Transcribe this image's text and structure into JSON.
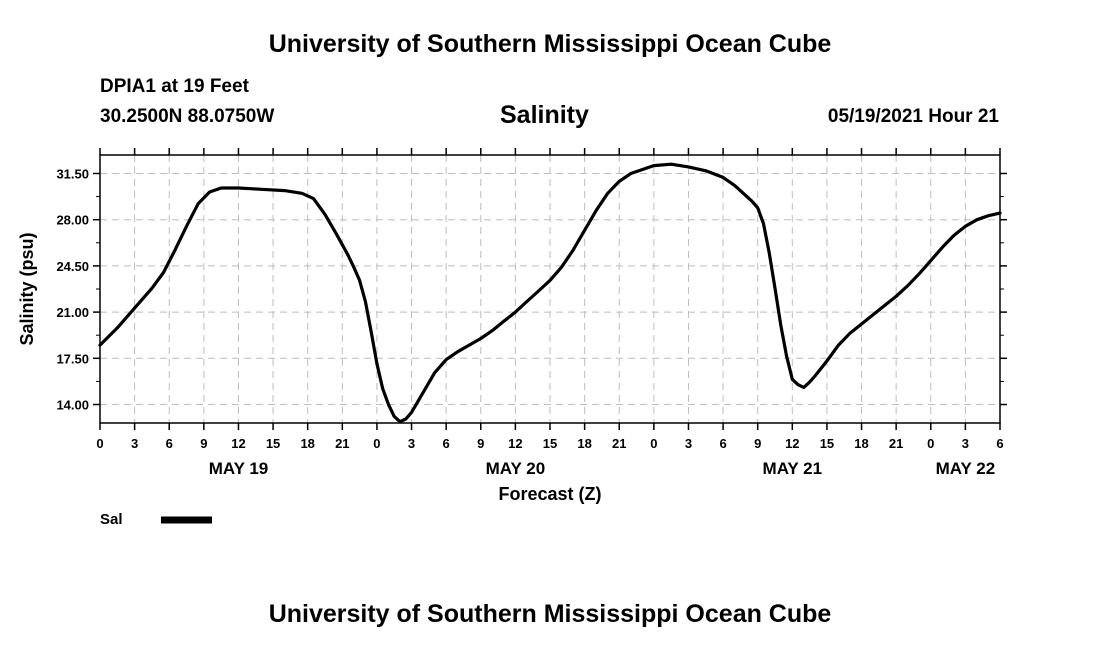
{
  "header": {
    "title_top": "University of Southern Mississippi Ocean Cube",
    "station": "DPIA1 at 19 Feet",
    "coords": "30.2500N  88.0750W",
    "variable": "Salinity",
    "datetime": "05/19/2021 Hour 21",
    "title_bottom": "University of Southern Mississippi Ocean Cube"
  },
  "chart_data": {
    "type": "line",
    "title": "Salinity",
    "xlabel": "Forecast (Z)",
    "ylabel": "Salinity (psu)",
    "xlim": [
      0,
      78
    ],
    "ylim": [
      12.6,
      32.9
    ],
    "yticks": [
      14.0,
      17.5,
      21.0,
      24.5,
      28.0,
      31.5
    ],
    "ytick_labels": [
      "14.00",
      "17.50",
      "21.00",
      "24.50",
      "28.00",
      "31.50"
    ],
    "xticks": [
      0,
      3,
      6,
      9,
      12,
      15,
      18,
      21,
      24,
      27,
      30,
      33,
      36,
      39,
      42,
      45,
      48,
      51,
      54,
      57,
      60,
      63,
      66,
      69,
      72,
      75,
      78
    ],
    "xtick_labels": [
      "0",
      "3",
      "6",
      "9",
      "12",
      "15",
      "18",
      "21",
      "0",
      "3",
      "6",
      "9",
      "12",
      "15",
      "18",
      "21",
      "0",
      "3",
      "6",
      "9",
      "12",
      "15",
      "18",
      "21",
      "0",
      "3",
      "6"
    ],
    "date_labels": [
      {
        "label": "MAY 19",
        "x": 12
      },
      {
        "label": "MAY 20",
        "x": 36
      },
      {
        "label": "MAY 21",
        "x": 60
      },
      {
        "label": "MAY 22",
        "x": 75
      }
    ],
    "grid": true,
    "series": [
      {
        "name": "Sal",
        "color": "#000000",
        "x": [
          0,
          1.5,
          3,
          4.5,
          5.5,
          6.5,
          7.5,
          8.5,
          9.5,
          10.5,
          12,
          14,
          16,
          17.5,
          18.5,
          19.5,
          20.5,
          21.5,
          22,
          22.5,
          23,
          23.5,
          24,
          24.5,
          25,
          25.5,
          26,
          26.5,
          27,
          28,
          29,
          30,
          31,
          32,
          33,
          34,
          35,
          36,
          37,
          38,
          39,
          40,
          41,
          42,
          43,
          44,
          45,
          46,
          48,
          49.5,
          51,
          52.5,
          54,
          55,
          56,
          56.5,
          57,
          57.5,
          58,
          58.5,
          59,
          59.5,
          60,
          60.5,
          61,
          61.5,
          62,
          63,
          64,
          65,
          66,
          67,
          68,
          69,
          70,
          71,
          72,
          73,
          74,
          75,
          76,
          77,
          78
        ],
        "values": [
          18.5,
          19.8,
          21.3,
          22.8,
          24.0,
          25.7,
          27.5,
          29.2,
          30.1,
          30.4,
          30.4,
          30.3,
          30.2,
          30.0,
          29.6,
          28.4,
          26.9,
          25.3,
          24.4,
          23.4,
          21.8,
          19.5,
          17.1,
          15.2,
          14.0,
          13.1,
          12.7,
          12.9,
          13.4,
          14.9,
          16.4,
          17.4,
          18.0,
          18.5,
          19.0,
          19.6,
          20.3,
          21.0,
          21.8,
          22.6,
          23.4,
          24.4,
          25.7,
          27.2,
          28.7,
          30.0,
          30.9,
          31.5,
          32.1,
          32.2,
          32.0,
          31.7,
          31.2,
          30.6,
          29.8,
          29.4,
          28.9,
          27.7,
          25.5,
          22.8,
          20.0,
          17.7,
          15.9,
          15.5,
          15.3,
          15.7,
          16.2,
          17.3,
          18.5,
          19.4,
          20.1,
          20.8,
          21.5,
          22.2,
          23.0,
          23.9,
          24.9,
          25.9,
          26.8,
          27.5,
          28.0,
          28.3,
          28.5
        ]
      }
    ],
    "legend": {
      "label": "Sal",
      "placement": "bottom-left"
    }
  }
}
